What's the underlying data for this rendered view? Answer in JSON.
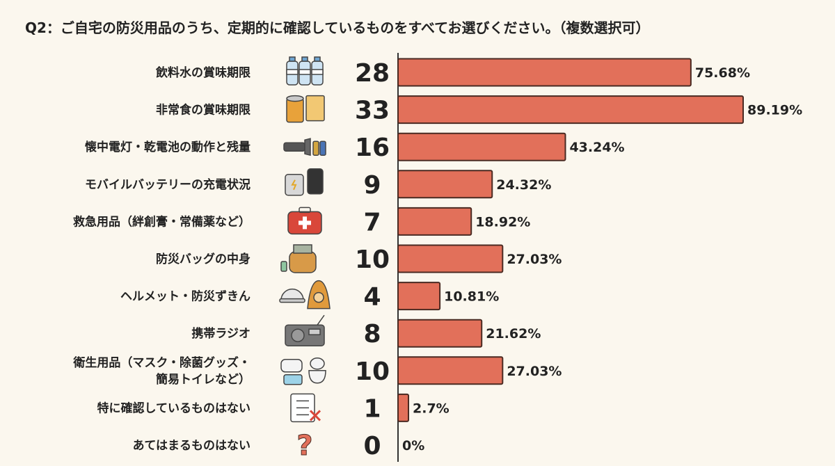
{
  "title": "Q2：ご自宅の防災用品のうち、定期的に確認しているものをすべてお選びください。（複数選択可）",
  "colors": {
    "bar": "#e2705a",
    "bar_outline": "#4a2a22",
    "background": "#fbf7ee"
  },
  "chart_data": {
    "type": "bar",
    "orientation": "horizontal",
    "title": "Q2：ご自宅の防災用品のうち、定期的に確認しているものをすべてお選びください。（複数選択可）",
    "categories": [
      [
        "飲料水の賞味期限"
      ],
      [
        "非常食の賞味期限"
      ],
      [
        "懐中電灯・乾電池の動作と残量"
      ],
      [
        "モバイルバッテリーの充電状況"
      ],
      [
        "救急用品（絆創膏・常備薬など）"
      ],
      [
        "防災バッグの中身"
      ],
      [
        "ヘルメット・防災ずきん"
      ],
      [
        "携帯ラジオ"
      ],
      [
        "衛生用品（マスク・除菌グッズ・",
        "簡易トイレなど）"
      ],
      [
        "特に確認しているものはない"
      ],
      [
        "あてはまるものはない"
      ]
    ],
    "icons": [
      "water-bottles-icon",
      "canned-food-icon",
      "flashlight-battery-icon",
      "mobile-battery-icon",
      "first-aid-kit-icon",
      "emergency-backpack-icon",
      "helmet-hood-icon",
      "radio-icon",
      "mask-toilet-icon",
      "checklist-x-icon",
      "question-mark-icon"
    ],
    "counts": [
      28,
      33,
      16,
      9,
      7,
      10,
      4,
      8,
      10,
      1,
      0
    ],
    "values": [
      75.68,
      89.19,
      43.24,
      24.32,
      18.92,
      27.03,
      10.81,
      21.62,
      27.03,
      2.7,
      0
    ],
    "value_labels": [
      "75.68%",
      "89.19%",
      "43.24%",
      "24.32%",
      "18.92%",
      "27.03%",
      "10.81%",
      "21.62%",
      "27.03%",
      "2.7%",
      "0%"
    ],
    "xlim": [
      0,
      100
    ],
    "grid": false,
    "legend": "none"
  }
}
